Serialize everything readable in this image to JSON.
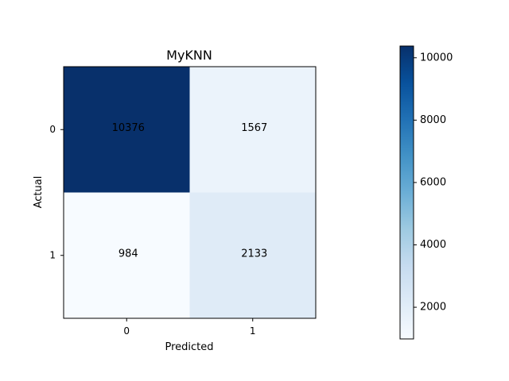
{
  "chart_data": {
    "type": "heatmap",
    "title": "MyKNN",
    "xlabel": "Predicted",
    "ylabel": "Actual",
    "x_categories": [
      "0",
      "1"
    ],
    "y_categories": [
      "0",
      "1"
    ],
    "matrix": [
      [
        10376,
        1567
      ],
      [
        984,
        2133
      ]
    ],
    "labels": [
      [
        "10376",
        "1567"
      ],
      [
        "984",
        "2133"
      ]
    ],
    "colormap": "Blues",
    "colorbar": {
      "min": 984,
      "max": 10376,
      "ticks": [
        2000,
        4000,
        6000,
        8000,
        10000
      ],
      "tick_labels": [
        "2000",
        "4000",
        "6000",
        "8000",
        "10000"
      ]
    }
  }
}
